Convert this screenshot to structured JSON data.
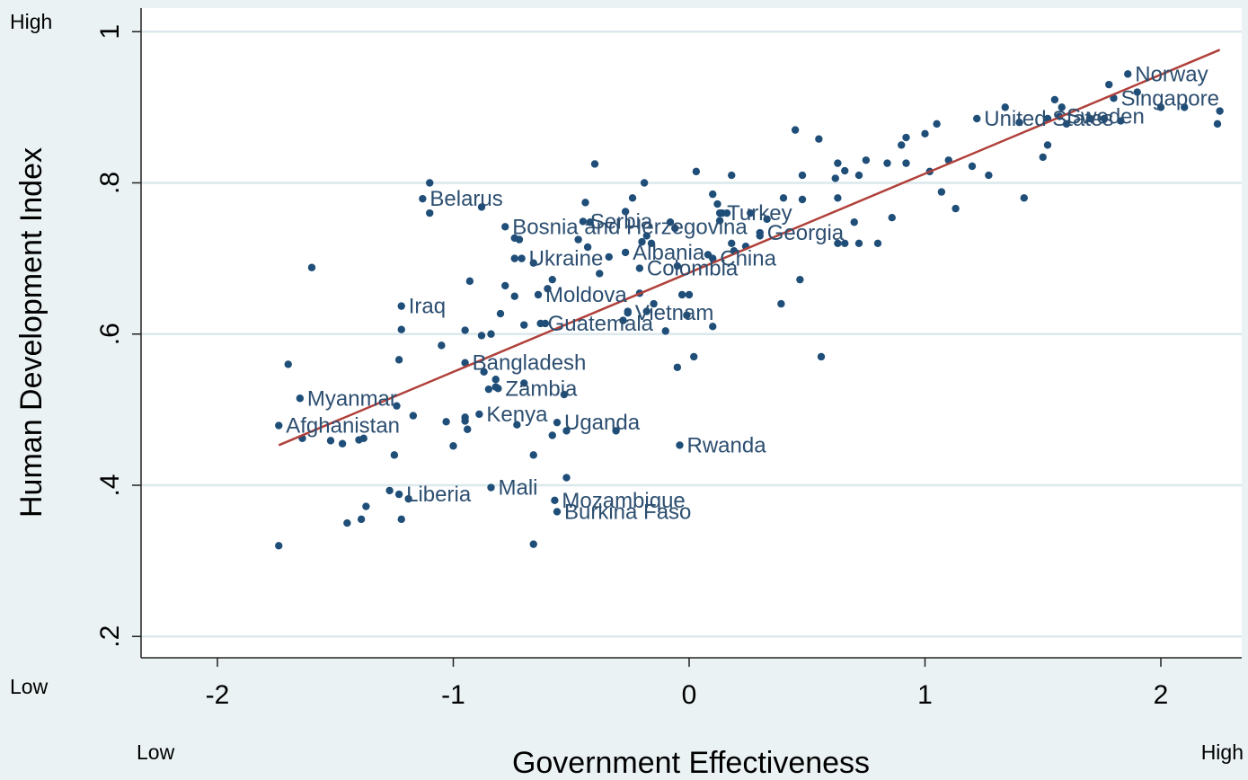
{
  "chart_data": {
    "type": "scatter",
    "title": "",
    "xlabel": "Government Effectiveness",
    "ylabel": "Human Development Index",
    "xlim": [
      -2.35,
      2.35
    ],
    "ylim": [
      0.2,
      1.03
    ],
    "grid": true,
    "x_ticks": [
      {
        "value": -2,
        "label": "-2"
      },
      {
        "value": -1,
        "label": "-1"
      },
      {
        "value": 0,
        "label": "0"
      },
      {
        "value": 1,
        "label": "1"
      },
      {
        "value": 2,
        "label": "2"
      }
    ],
    "y_ticks": [
      {
        "value": 0.2,
        "label": ".2"
      },
      {
        "value": 0.4,
        "label": ".4"
      },
      {
        "value": 0.6,
        "label": ".6"
      },
      {
        "value": 0.8,
        "label": ".8"
      },
      {
        "value": 1.0,
        "label": "1"
      }
    ],
    "x_end_labels": {
      "low": "Low",
      "high": "High"
    },
    "y_end_labels": {
      "low": "Low",
      "high": "High"
    },
    "fit_line": {
      "x": [
        -1.74,
        2.25
      ],
      "y": [
        0.453,
        0.976
      ]
    },
    "colors": {
      "points": "#1f4e79",
      "labels": "#2c4e70",
      "fit": "#b0403a",
      "grid": "#dbe8ec",
      "background": "#eaf2f3",
      "plot_bg": "#ffffff"
    },
    "labeled_points": [
      {
        "name": "Norway",
        "x": 1.86,
        "y": 0.944
      },
      {
        "name": "Singapore",
        "x": 1.8,
        "y": 0.912
      },
      {
        "name": "United States",
        "x": 1.22,
        "y": 0.885
      },
      {
        "name": "Sweden",
        "x": 1.57,
        "y": 0.888
      },
      {
        "name": "Belarus",
        "x": -1.13,
        "y": 0.779
      },
      {
        "name": "Bosnia and Herzegovina",
        "x": -0.78,
        "y": 0.742
      },
      {
        "name": "Turkey",
        "x": 0.13,
        "y": 0.76
      },
      {
        "name": "Serbia",
        "x": -0.45,
        "y": 0.749
      },
      {
        "name": "Georgia",
        "x": 0.3,
        "y": 0.734
      },
      {
        "name": "Albania",
        "x": -0.27,
        "y": 0.708
      },
      {
        "name": "China",
        "x": 0.1,
        "y": 0.7
      },
      {
        "name": "Ukraine",
        "x": -0.71,
        "y": 0.7
      },
      {
        "name": "Colombia",
        "x": -0.21,
        "y": 0.687
      },
      {
        "name": "Moldova",
        "x": -0.64,
        "y": 0.652
      },
      {
        "name": "Iraq",
        "x": -1.22,
        "y": 0.637
      },
      {
        "name": "Vietnam",
        "x": -0.26,
        "y": 0.628
      },
      {
        "name": "Guatemala",
        "x": -0.63,
        "y": 0.614
      },
      {
        "name": "Bangladesh",
        "x": -0.95,
        "y": 0.562
      },
      {
        "name": "Zambia",
        "x": -0.81,
        "y": 0.528
      },
      {
        "name": "Myanmar",
        "x": -1.65,
        "y": 0.515
      },
      {
        "name": "Kenya",
        "x": -0.89,
        "y": 0.494
      },
      {
        "name": "Uganda",
        "x": -0.56,
        "y": 0.483
      },
      {
        "name": "Rwanda",
        "x": -0.04,
        "y": 0.453
      },
      {
        "name": "Afghanistan",
        "x": -1.74,
        "y": 0.479
      },
      {
        "name": "Liberia",
        "x": -1.23,
        "y": 0.388
      },
      {
        "name": "Mali",
        "x": -0.84,
        "y": 0.397
      },
      {
        "name": "Mozambique",
        "x": -0.57,
        "y": 0.38
      },
      {
        "name": "Burkina Faso",
        "x": -0.56,
        "y": 0.365
      }
    ],
    "other_points": [
      [
        1.55,
        0.91
      ],
      [
        1.58,
        0.9
      ],
      [
        1.78,
        0.93
      ],
      [
        1.9,
        0.92
      ],
      [
        2.0,
        0.9
      ],
      [
        2.1,
        0.9
      ],
      [
        2.25,
        0.895
      ],
      [
        2.24,
        0.878
      ],
      [
        1.34,
        0.9
      ],
      [
        1.4,
        0.88
      ],
      [
        1.52,
        0.885
      ],
      [
        1.7,
        0.885
      ],
      [
        1.76,
        0.885
      ],
      [
        1.83,
        0.882
      ],
      [
        1.6,
        0.878
      ],
      [
        1.05,
        0.878
      ],
      [
        1.0,
        0.865
      ],
      [
        0.92,
        0.86
      ],
      [
        0.9,
        0.85
      ],
      [
        0.92,
        0.826
      ],
      [
        1.1,
        0.83
      ],
      [
        1.2,
        0.822
      ],
      [
        1.27,
        0.81
      ],
      [
        1.02,
        0.815
      ],
      [
        1.07,
        0.788
      ],
      [
        1.13,
        0.766
      ],
      [
        1.42,
        0.78
      ],
      [
        1.5,
        0.834
      ],
      [
        1.52,
        0.85
      ],
      [
        0.45,
        0.87
      ],
      [
        0.55,
        0.858
      ],
      [
        0.63,
        0.826
      ],
      [
        0.66,
        0.816
      ],
      [
        0.75,
        0.83
      ],
      [
        0.72,
        0.81
      ],
      [
        0.84,
        0.826
      ],
      [
        0.62,
        0.806
      ],
      [
        0.48,
        0.81
      ],
      [
        0.4,
        0.78
      ],
      [
        0.48,
        0.778
      ],
      [
        0.63,
        0.78
      ],
      [
        0.86,
        0.754
      ],
      [
        0.7,
        0.748
      ],
      [
        0.66,
        0.72
      ],
      [
        0.72,
        0.72
      ],
      [
        0.8,
        0.72
      ],
      [
        0.63,
        0.72
      ],
      [
        0.47,
        0.672
      ],
      [
        0.39,
        0.64
      ],
      [
        0.56,
        0.57
      ],
      [
        0.03,
        0.815
      ],
      [
        0.18,
        0.81
      ],
      [
        0.1,
        0.785
      ],
      [
        0.12,
        0.772
      ],
      [
        0.14,
        0.76
      ],
      [
        0.16,
        0.76
      ],
      [
        0.13,
        0.75
      ],
      [
        0.26,
        0.76
      ],
      [
        0.33,
        0.752
      ],
      [
        0.3,
        0.73
      ],
      [
        0.18,
        0.72
      ],
      [
        0.24,
        0.716
      ],
      [
        0.19,
        0.71
      ],
      [
        0.08,
        0.705
      ],
      [
        -0.08,
        0.748
      ],
      [
        -0.06,
        0.74
      ],
      [
        -0.24,
        0.78
      ],
      [
        -0.19,
        0.8
      ],
      [
        -0.27,
        0.762
      ],
      [
        -0.4,
        0.825
      ],
      [
        -0.44,
        0.774
      ],
      [
        -0.42,
        0.748
      ],
      [
        -0.47,
        0.725
      ],
      [
        -0.43,
        0.715
      ],
      [
        -0.2,
        0.722
      ],
      [
        -0.18,
        0.73
      ],
      [
        -0.16,
        0.72
      ],
      [
        -0.34,
        0.702
      ],
      [
        -0.38,
        0.68
      ],
      [
        -0.05,
        0.69
      ],
      [
        -0.03,
        0.652
      ],
      [
        0.0,
        0.652
      ],
      [
        0.1,
        0.61
      ],
      [
        -0.21,
        0.654
      ],
      [
        -0.15,
        0.64
      ],
      [
        -0.01,
        0.625
      ],
      [
        -0.1,
        0.604
      ],
      [
        -0.18,
        0.63
      ],
      [
        -0.26,
        0.63
      ],
      [
        -0.28,
        0.618
      ],
      [
        -0.05,
        0.556
      ],
      [
        0.02,
        0.57
      ],
      [
        -0.58,
        0.672
      ],
      [
        -0.6,
        0.66
      ],
      [
        -0.66,
        0.694
      ],
      [
        -0.74,
        0.727
      ],
      [
        -0.72,
        0.725
      ],
      [
        -0.74,
        0.7
      ],
      [
        -0.88,
        0.768
      ],
      [
        -1.1,
        0.8
      ],
      [
        -1.1,
        0.76
      ],
      [
        -1.6,
        0.688
      ],
      [
        -0.93,
        0.67
      ],
      [
        -0.78,
        0.664
      ],
      [
        -0.74,
        0.65
      ],
      [
        -0.8,
        0.627
      ],
      [
        -1.22,
        0.606
      ],
      [
        -0.95,
        0.605
      ],
      [
        -0.88,
        0.598
      ],
      [
        -0.84,
        0.6
      ],
      [
        -0.7,
        0.612
      ],
      [
        -0.61,
        0.614
      ],
      [
        -1.23,
        0.566
      ],
      [
        -1.05,
        0.585
      ],
      [
        -0.87,
        0.55
      ],
      [
        -0.82,
        0.54
      ],
      [
        -0.85,
        0.527
      ],
      [
        -0.82,
        0.53
      ],
      [
        -0.7,
        0.535
      ],
      [
        -0.53,
        0.52
      ],
      [
        -1.7,
        0.56
      ],
      [
        -1.24,
        0.505
      ],
      [
        -1.17,
        0.492
      ],
      [
        -0.95,
        0.49
      ],
      [
        -0.95,
        0.485
      ],
      [
        -1.03,
        0.484
      ],
      [
        -0.94,
        0.474
      ],
      [
        -0.73,
        0.48
      ],
      [
        -0.58,
        0.466
      ],
      [
        -0.52,
        0.472
      ],
      [
        -0.31,
        0.472
      ],
      [
        -1.64,
        0.462
      ],
      [
        -1.52,
        0.459
      ],
      [
        -1.47,
        0.455
      ],
      [
        -1.4,
        0.46
      ],
      [
        -1.38,
        0.462
      ],
      [
        -1.25,
        0.44
      ],
      [
        -1.0,
        0.452
      ],
      [
        -0.66,
        0.44
      ],
      [
        -0.52,
        0.41
      ],
      [
        -1.27,
        0.393
      ],
      [
        -1.19,
        0.382
      ],
      [
        -1.37,
        0.372
      ],
      [
        -1.22,
        0.355
      ],
      [
        -1.39,
        0.355
      ],
      [
        -1.45,
        0.35
      ],
      [
        -1.74,
        0.32
      ],
      [
        -0.66,
        0.322
      ]
    ]
  }
}
